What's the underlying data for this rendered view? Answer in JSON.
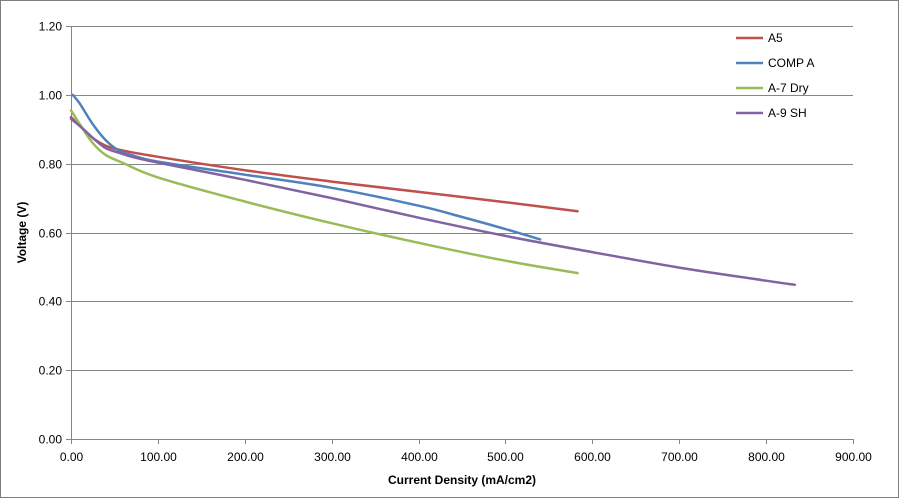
{
  "chart_data": {
    "type": "line",
    "xlabel": "Current Density (mA/cm2)",
    "ylabel": "Voltage (V)",
    "xlim": [
      0,
      900
    ],
    "ylim": [
      0,
      1.2
    ],
    "x_ticks": [
      "0.00",
      "100.00",
      "200.00",
      "300.00",
      "400.00",
      "500.00",
      "600.00",
      "700.00",
      "800.00",
      "900.00"
    ],
    "y_ticks": [
      "0.00",
      "0.20",
      "0.40",
      "0.60",
      "0.80",
      "1.00",
      "1.20"
    ],
    "grid": "horizontal",
    "legend_position": "top-right",
    "series": [
      {
        "name": "A5",
        "color": "#c0504d",
        "points": [
          [
            0,
            0.935
          ],
          [
            10,
            0.91
          ],
          [
            25,
            0.875
          ],
          [
            40,
            0.852
          ],
          [
            60,
            0.838
          ],
          [
            100,
            0.82
          ],
          [
            200,
            0.781
          ],
          [
            300,
            0.748
          ],
          [
            400,
            0.718
          ],
          [
            500,
            0.688
          ],
          [
            583,
            0.662
          ]
        ]
      },
      {
        "name": "COMP A",
        "color": "#4f81bd",
        "points": [
          [
            2,
            1.0
          ],
          [
            10,
            0.975
          ],
          [
            25,
            0.915
          ],
          [
            40,
            0.868
          ],
          [
            55,
            0.838
          ],
          [
            70,
            0.825
          ],
          [
            100,
            0.806
          ],
          [
            200,
            0.768
          ],
          [
            300,
            0.73
          ],
          [
            400,
            0.678
          ],
          [
            450,
            0.645
          ],
          [
            500,
            0.61
          ],
          [
            540,
            0.58
          ]
        ]
      },
      {
        "name": "A-7 Dry",
        "color": "#9bbb59",
        "points": [
          [
            0,
            0.955
          ],
          [
            10,
            0.915
          ],
          [
            25,
            0.86
          ],
          [
            40,
            0.825
          ],
          [
            60,
            0.802
          ],
          [
            100,
            0.76
          ],
          [
            200,
            0.69
          ],
          [
            300,
            0.627
          ],
          [
            400,
            0.57
          ],
          [
            500,
            0.518
          ],
          [
            583,
            0.482
          ]
        ]
      },
      {
        "name": "A-9 SH",
        "color": "#8064a2",
        "points": [
          [
            0,
            0.93
          ],
          [
            10,
            0.91
          ],
          [
            25,
            0.875
          ],
          [
            40,
            0.845
          ],
          [
            55,
            0.832
          ],
          [
            70,
            0.82
          ],
          [
            100,
            0.803
          ],
          [
            200,
            0.753
          ],
          [
            300,
            0.7
          ],
          [
            400,
            0.643
          ],
          [
            500,
            0.59
          ],
          [
            600,
            0.543
          ],
          [
            700,
            0.498
          ],
          [
            800,
            0.46
          ],
          [
            833,
            0.448
          ]
        ]
      }
    ]
  }
}
